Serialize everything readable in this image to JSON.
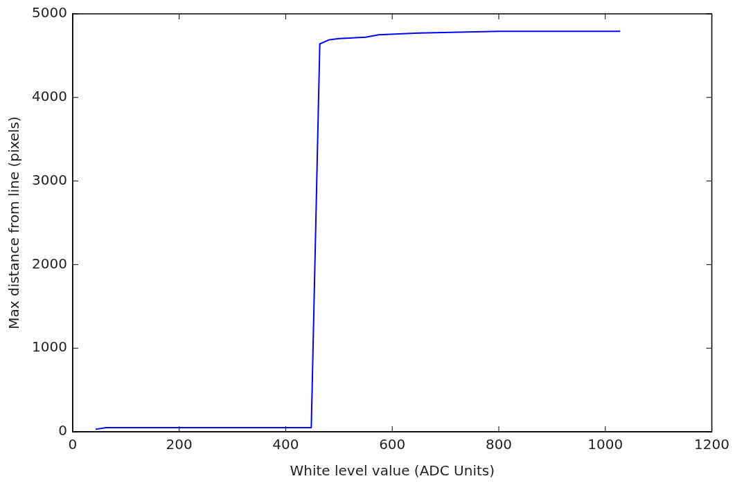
{
  "chart_data": {
    "type": "line",
    "xlabel": "White level value (ADC Units)",
    "ylabel": "Max distance from line (pixels)",
    "x": [
      43,
      63,
      150,
      300,
      440,
      448,
      464,
      482,
      500,
      550,
      575,
      650,
      800,
      1028
    ],
    "series": [
      {
        "color": "#0000ff",
        "values": [
          30,
          50,
          50,
          50,
          50,
          50,
          4640,
          4690,
          4705,
          4720,
          4750,
          4770,
          4790,
          4790
        ]
      }
    ],
    "xlim": [
      0,
      1200
    ],
    "xticks": [
      0,
      200,
      400,
      600,
      800,
      1000,
      1200
    ],
    "ylim": [
      0,
      5000
    ],
    "yticks": [
      0,
      1000,
      2000,
      3000,
      4000,
      5000
    ],
    "grid": false,
    "legend": false,
    "marker": "none",
    "line_style": "solid"
  }
}
